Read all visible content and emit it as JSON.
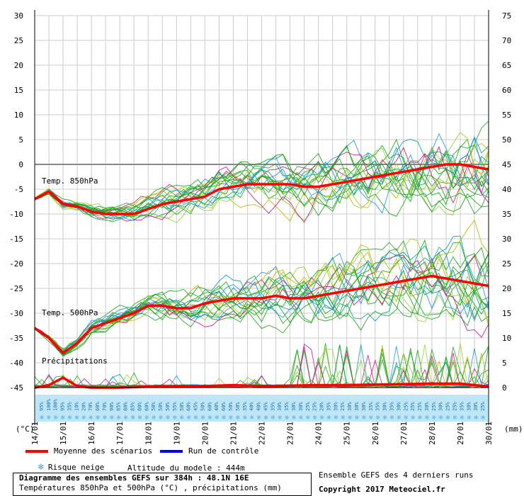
{
  "chart_data": {
    "type": "line",
    "title": "Diagramme des ensembles GEFS sur 384h : 48.1N 16E",
    "subtitle": "Températures 850hPa et 500hPa (°C) , précipitations (mm)",
    "left_axis": {
      "unit": "(°C)",
      "ylim": [
        -45,
        30
      ],
      "ticks": [
        30,
        25,
        20,
        15,
        10,
        5,
        0,
        -5,
        -10,
        -15,
        -20,
        -25,
        -30,
        -35,
        -40,
        -45
      ]
    },
    "right_axis": {
      "unit": "(mm)",
      "ylim": [
        0,
        75
      ],
      "ticks": [
        75,
        70,
        65,
        60,
        55,
        50,
        45,
        40,
        35,
        30,
        25,
        20,
        15,
        10,
        5,
        0
      ]
    },
    "x_dates": [
      "14/01",
      "15/01",
      "16/01",
      "17/01",
      "18/01",
      "19/01",
      "20/01",
      "21/01",
      "22/01",
      "23/01",
      "24/01",
      "25/01",
      "26/01",
      "27/01",
      "28/01",
      "29/01",
      "30/01"
    ],
    "series_labels": {
      "t850": "Temp. 850hPa",
      "t500": "Temp. 500hPa",
      "precip": "Précipitations"
    },
    "series": [
      {
        "name": "Moyenne des scénarios",
        "axis": "temp",
        "group": "t850",
        "x": [
          0,
          0.5,
          1,
          1.5,
          2,
          2.5,
          3,
          3.5,
          4,
          4.5,
          5,
          5.5,
          6,
          6.5,
          7,
          7.5,
          8,
          8.5,
          9,
          9.5,
          10,
          10.5,
          11,
          11.5,
          12,
          12.5,
          13,
          13.5,
          14,
          14.5,
          15,
          15.5,
          16
        ],
        "values": [
          -7,
          -5.5,
          -8,
          -8.5,
          -9.5,
          -10,
          -10,
          -10,
          -9,
          -8,
          -7.5,
          -7,
          -6.5,
          -5,
          -4.5,
          -4,
          -4,
          -4,
          -4,
          -4.5,
          -4.5,
          -4,
          -3.5,
          -3,
          -2.5,
          -2,
          -1.5,
          -1,
          -0.5,
          0,
          0,
          -0.5,
          -1
        ]
      },
      {
        "name": "Moyenne des scénarios",
        "axis": "temp",
        "group": "t500",
        "x": [
          0,
          0.5,
          1,
          1.5,
          2,
          2.5,
          3,
          3.5,
          4,
          4.5,
          5,
          5.5,
          6,
          6.5,
          7,
          7.5,
          8,
          8.5,
          9,
          9.5,
          10,
          10.5,
          11,
          11.5,
          12,
          12.5,
          13,
          13.5,
          14,
          14.5,
          15,
          15.5,
          16
        ],
        "values": [
          -33,
          -35,
          -38,
          -36,
          -33,
          -32,
          -31,
          -30,
          -28.5,
          -28.5,
          -29,
          -29,
          -28,
          -27.5,
          -27,
          -27,
          -27,
          -26.5,
          -27,
          -27,
          -26.5,
          -26,
          -25.5,
          -25,
          -24.5,
          -24,
          -23.5,
          -23,
          -22.5,
          -23,
          -23.5,
          -24,
          -24.5
        ]
      },
      {
        "name": "Moyenne des scénarios",
        "axis": "precip",
        "group": "precip",
        "x": [
          0,
          0.5,
          1,
          1.5,
          2,
          3,
          4,
          5,
          6,
          7,
          8,
          9,
          10,
          11,
          12,
          13,
          14,
          15,
          15.5,
          16
        ],
        "values": [
          0,
          0.5,
          2,
          0.3,
          0,
          0,
          0.2,
          0.3,
          0.3,
          0.5,
          0.3,
          0.4,
          0.5,
          0.5,
          0.6,
          0.7,
          0.8,
          0.8,
          0.5,
          0.2
        ]
      }
    ],
    "snow_risk_percent": [
      "95%",
      "100%",
      "100%",
      "95%",
      "35%",
      "10%",
      "20%",
      "70%",
      "60%",
      "70%",
      "90%",
      "85%",
      "80%",
      "85%",
      "80%",
      "60%",
      "50%",
      "50%",
      "50%",
      "55%",
      "50%",
      "60%",
      "45%",
      "50%",
      "60%",
      "40%",
      "60%",
      "50%",
      "50%",
      "35%",
      "40%",
      "40%",
      "45%",
      "35%",
      "30%",
      "35%",
      "30%",
      "30%",
      "25%",
      "25%",
      "20%",
      "35%",
      "30%",
      "25%",
      "30%",
      "30%",
      "30%",
      "35%",
      "35%",
      "30%",
      "35%",
      "30%",
      "25%",
      "25%",
      "25%",
      "30%",
      "25%",
      "30%",
      "25%",
      "25%",
      "35%",
      "30%",
      "30%",
      "25%"
    ]
  },
  "legend": {
    "mean": {
      "label": "Moyenne des scénarios",
      "color": "#ff0000"
    },
    "control": {
      "label": "Run de contrôle",
      "color": "#0000ff"
    },
    "snow": {
      "label": "Risque neige",
      "icon": "snowflake-icon"
    },
    "altitude": "Altitude du modele : 444m"
  },
  "footer": {
    "title": "Diagramme des ensembles GEFS sur 384h : 48.1N 16E",
    "subtitle": "Températures 850hPa et 500hPa (°C) , précipitations (mm)",
    "ensemble_note": "Ensemble GEFS des 4 derniers runs",
    "copyright": "Copyright 2017 Meteociel.fr"
  },
  "colors": {
    "mean": "#ff0000",
    "ensemble": "#1aa51a",
    "control": "#0000ff",
    "snow_band": "#bfe6f7",
    "grid": "#cccccc"
  }
}
